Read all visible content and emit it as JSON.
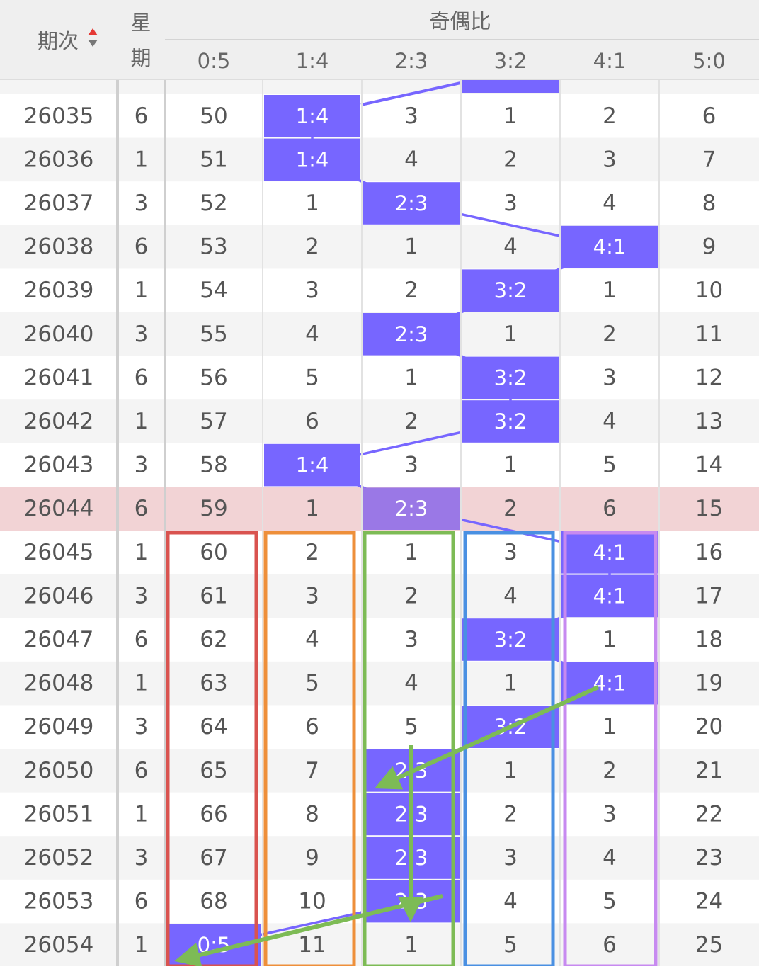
{
  "header": {
    "period": "期次",
    "weekday": [
      "星",
      "期"
    ],
    "group": "奇偶比",
    "ratios": [
      "0:5",
      "1:4",
      "2:3",
      "3:2",
      "4:1",
      "5:0"
    ]
  },
  "table": {
    "rows": [
      [
        "26035",
        "6",
        [
          "50",
          "1:4",
          "3",
          "1",
          "2",
          "6"
        ]
      ],
      [
        "26036",
        "1",
        [
          "51",
          "1:4",
          "4",
          "2",
          "3",
          "7"
        ]
      ],
      [
        "26037",
        "3",
        [
          "52",
          "1",
          "2:3",
          "3",
          "4",
          "8"
        ]
      ],
      [
        "26038",
        "6",
        [
          "53",
          "2",
          "1",
          "4",
          "4:1",
          "9"
        ]
      ],
      [
        "26039",
        "1",
        [
          "54",
          "3",
          "2",
          "3:2",
          "1",
          "10"
        ]
      ],
      [
        "26040",
        "3",
        [
          "55",
          "4",
          "2:3",
          "1",
          "2",
          "11"
        ]
      ],
      [
        "26041",
        "6",
        [
          "56",
          "5",
          "1",
          "3:2",
          "3",
          "12"
        ]
      ],
      [
        "26042",
        "1",
        [
          "57",
          "6",
          "2",
          "3:2",
          "4",
          "13"
        ]
      ],
      [
        "26043",
        "3",
        [
          "58",
          "1:4",
          "3",
          "1",
          "5",
          "14"
        ]
      ],
      [
        "26044",
        "6",
        [
          "59",
          "1",
          "2:3",
          "2",
          "6",
          "15"
        ]
      ],
      [
        "26045",
        "1",
        [
          "60",
          "2",
          "1",
          "3",
          "4:1",
          "16"
        ]
      ],
      [
        "26046",
        "3",
        [
          "61",
          "3",
          "2",
          "4",
          "4:1",
          "17"
        ]
      ],
      [
        "26047",
        "6",
        [
          "62",
          "4",
          "3",
          "3:2",
          "1",
          "18"
        ]
      ],
      [
        "26048",
        "1",
        [
          "63",
          "5",
          "4",
          "1",
          "4:1",
          "19"
        ]
      ],
      [
        "26049",
        "3",
        [
          "64",
          "6",
          "5",
          "3:2",
          "1",
          "20"
        ]
      ],
      [
        "26050",
        "6",
        [
          "65",
          "7",
          "2:3",
          "1",
          "2",
          "21"
        ]
      ],
      [
        "26051",
        "1",
        [
          "66",
          "8",
          "2:3",
          "2",
          "3",
          "22"
        ]
      ],
      [
        "26052",
        "3",
        [
          "67",
          "9",
          "2:3",
          "3",
          "4",
          "23"
        ]
      ],
      [
        "26053",
        "6",
        [
          "68",
          "10",
          "2:3",
          "4",
          "5",
          "24"
        ]
      ],
      [
        "26054",
        "1",
        [
          "0:5",
          "11",
          "1",
          "5",
          "6",
          "25"
        ]
      ]
    ],
    "current_row": 9
  }
}
